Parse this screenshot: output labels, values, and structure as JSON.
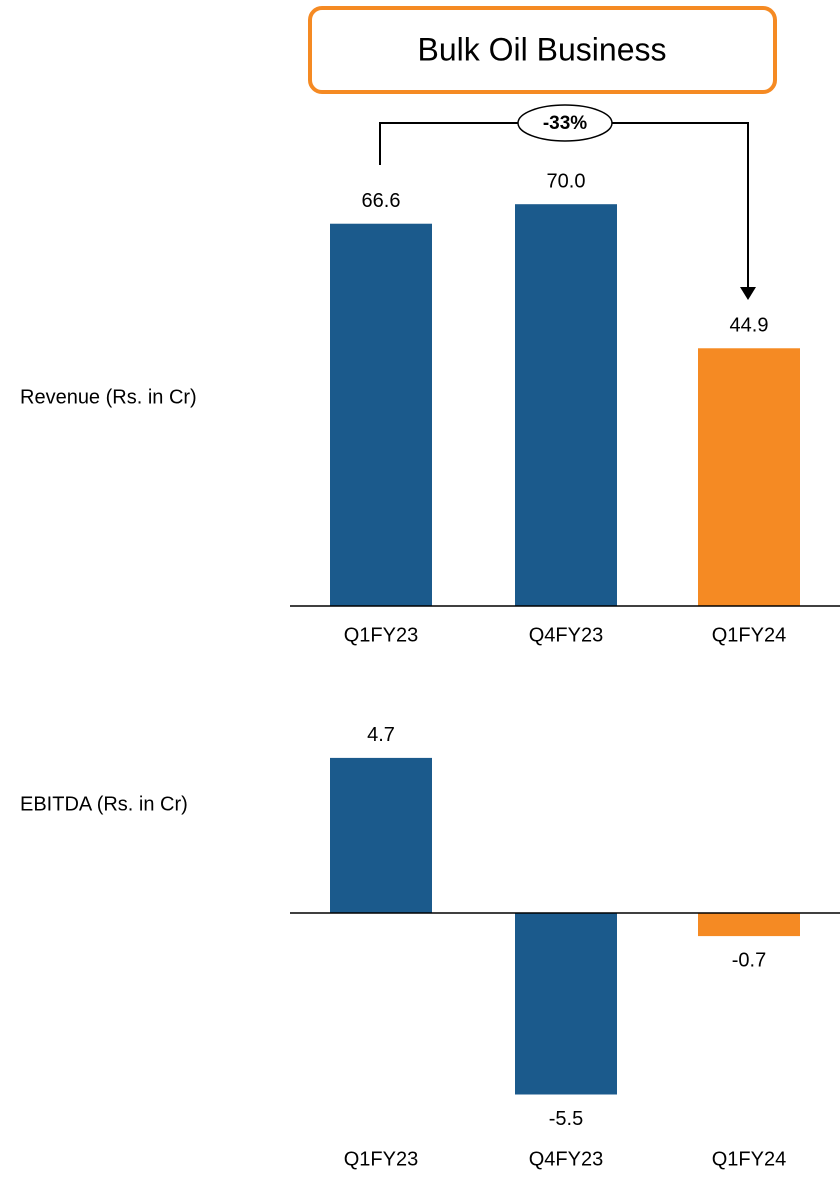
{
  "chart_data": [
    {
      "type": "bar",
      "title": "Bulk Oil Business",
      "ylabel": "Revenue (Rs. in Cr)",
      "categories": [
        "Q1FY23",
        "Q4FY23",
        "Q1FY24"
      ],
      "values": [
        66.6,
        70.0,
        44.9
      ],
      "value_labels": [
        "66.6",
        "70.0",
        "44.9"
      ],
      "colors": [
        "#1b5a8c",
        "#1b5a8c",
        "#f58a23"
      ],
      "ylim": [
        0,
        75
      ],
      "annotations": [
        "-33%"
      ]
    },
    {
      "type": "bar",
      "ylabel": "EBITDA (Rs. in Cr)",
      "categories": [
        "Q1FY23",
        "Q4FY23",
        "Q1FY24"
      ],
      "values": [
        4.7,
        -5.5,
        -0.7
      ],
      "value_labels": [
        "4.7",
        "-5.5",
        "-0.7"
      ],
      "colors": [
        "#1b5a8c",
        "#1b5a8c",
        "#f58a23"
      ],
      "ylim": [
        -6,
        5
      ]
    }
  ]
}
